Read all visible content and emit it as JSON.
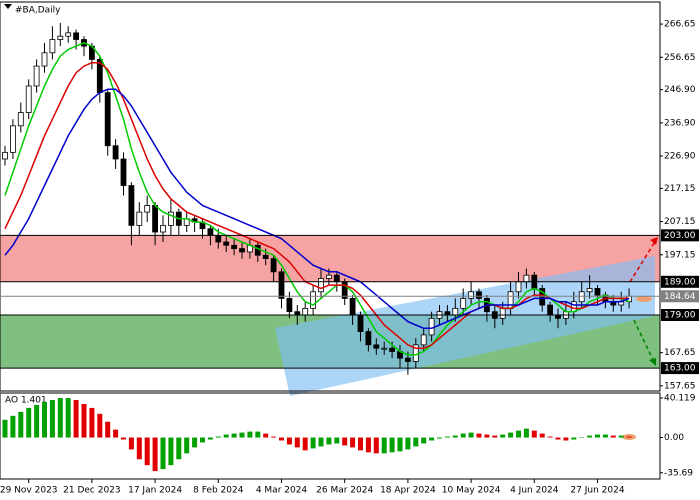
{
  "chart_data": {
    "type": "candlestick",
    "title": "#BA,Daily",
    "ylim": [
      156.1,
      273.0
    ],
    "yticks": [
      266.65,
      256.65,
      {
        "value": 246.9,
        "label": "246.90"
      },
      {
        "value": 236.9,
        "label": "236.90"
      },
      {
        "value": 226.9,
        "label": "226.90"
      },
      217.15,
      207.15,
      197.15,
      167.65,
      157.65
    ],
    "xticks": [
      {
        "value": 3,
        "label": "29 Nov 2023"
      },
      {
        "value": 11,
        "label": "21 Dec 2023"
      },
      {
        "value": 19,
        "label": "17 Jan 2024"
      },
      {
        "value": 27,
        "label": "8 Feb 2024"
      },
      {
        "value": 35,
        "label": "4 Mar 2024"
      },
      {
        "value": 43,
        "label": "26 Mar 2024"
      },
      {
        "value": 51,
        "label": "18 Apr 2024"
      },
      {
        "value": 59,
        "label": "10 May 2024"
      },
      {
        "value": 67,
        "label": "4 Jun 2024"
      },
      {
        "value": 75,
        "label": "27 Jun 2024"
      }
    ],
    "ohlc": [
      [
        226,
        230,
        224,
        228
      ],
      [
        228,
        238,
        226,
        236
      ],
      [
        236,
        243,
        234,
        240
      ],
      [
        240,
        250,
        238,
        248
      ],
      [
        248,
        256,
        246,
        254
      ],
      [
        254,
        261,
        252,
        258
      ],
      [
        258,
        266,
        256,
        262
      ],
      [
        262,
        267,
        260,
        263
      ],
      [
        263,
        266,
        261,
        264
      ],
      [
        264,
        265,
        259,
        262
      ],
      [
        262,
        263,
        257,
        260
      ],
      [
        260,
        261,
        253,
        256
      ],
      [
        256,
        257,
        243,
        246
      ],
      [
        246,
        247,
        227,
        230
      ],
      [
        230,
        232,
        223,
        226
      ],
      [
        226,
        228,
        215,
        218
      ],
      [
        218,
        219,
        200,
        206
      ],
      [
        206,
        213,
        203,
        210
      ],
      [
        210,
        215,
        207,
        212
      ],
      [
        212,
        213,
        200,
        204
      ],
      [
        204,
        209,
        201,
        206
      ],
      [
        206,
        214,
        203,
        210
      ],
      [
        210,
        211,
        203,
        206
      ],
      [
        206,
        210,
        204,
        208
      ],
      [
        208,
        209,
        204,
        207
      ],
      [
        207,
        208,
        202,
        205
      ],
      [
        205,
        206,
        200,
        203
      ],
      [
        203,
        205,
        199,
        201
      ],
      [
        201,
        203,
        198,
        200
      ],
      [
        200,
        202,
        197,
        199
      ],
      [
        199,
        201,
        196,
        198
      ],
      [
        198,
        202,
        196,
        200
      ],
      [
        200,
        201,
        195,
        197
      ],
      [
        197,
        199,
        194,
        196
      ],
      [
        196,
        197,
        189,
        192
      ],
      [
        192,
        193,
        181,
        184
      ],
      [
        184,
        186,
        178,
        180
      ],
      [
        180,
        182,
        176,
        179
      ],
      [
        179,
        183,
        177,
        181
      ],
      [
        181,
        188,
        179,
        186
      ],
      [
        186,
        193,
        184,
        190
      ],
      [
        190,
        193,
        188,
        191
      ],
      [
        191,
        192,
        186,
        189
      ],
      [
        189,
        190,
        182,
        184
      ],
      [
        184,
        185,
        176,
        179
      ],
      [
        179,
        180,
        171,
        174
      ],
      [
        174,
        175,
        168,
        170
      ],
      [
        170,
        172,
        167,
        169
      ],
      [
        169,
        171,
        167,
        169
      ],
      [
        169,
        171,
        166,
        168
      ],
      [
        168,
        170,
        163,
        166
      ],
      [
        166,
        168,
        161,
        165
      ],
      [
        165,
        172,
        163,
        170
      ],
      [
        170,
        175,
        168,
        173
      ],
      [
        173,
        180,
        171,
        178
      ],
      [
        178,
        182,
        176,
        180
      ],
      [
        180,
        182,
        177,
        179
      ],
      [
        179,
        184,
        177,
        181
      ],
      [
        181,
        187,
        179,
        184
      ],
      [
        184,
        189,
        182,
        186
      ],
      [
        186,
        187,
        181,
        184
      ],
      [
        184,
        185,
        177,
        180
      ],
      [
        180,
        182,
        175,
        178
      ],
      [
        178,
        183,
        176,
        181
      ],
      [
        181,
        189,
        179,
        186
      ],
      [
        186,
        192,
        184,
        189
      ],
      [
        189,
        193,
        187,
        191
      ],
      [
        191,
        192,
        185,
        187
      ],
      [
        187,
        188,
        180,
        182
      ],
      [
        182,
        183,
        177,
        179
      ],
      [
        179,
        181,
        175,
        178
      ],
      [
        178,
        183,
        176,
        180
      ],
      [
        180,
        186,
        178,
        183
      ],
      [
        183,
        189,
        181,
        186
      ],
      [
        186,
        191,
        184,
        187
      ],
      [
        187,
        188,
        182,
        185
      ],
      [
        185,
        186,
        181,
        183
      ],
      [
        183,
        185,
        180,
        182
      ],
      [
        182,
        186,
        180,
        183
      ],
      [
        183,
        187,
        181,
        184.64
      ]
    ],
    "series": [
      {
        "color": "#00cc00",
        "values": [
          215,
          222,
          229,
          236,
          242,
          248,
          253,
          257,
          259,
          260,
          261,
          260,
          257,
          252,
          245,
          238,
          229,
          222,
          216,
          212,
          210,
          209,
          208,
          208,
          207,
          207,
          206,
          204,
          203,
          202,
          201,
          200,
          199,
          198,
          197,
          194,
          190,
          186,
          183,
          182,
          184,
          186,
          188,
          188,
          186,
          182,
          178,
          174,
          172,
          170,
          168,
          167,
          167,
          168,
          170,
          173,
          176,
          178,
          180,
          182,
          183,
          183,
          182,
          181,
          181,
          183,
          186,
          187,
          186,
          184,
          182,
          180,
          180,
          181,
          183,
          184,
          185,
          184,
          184,
          183
        ]
      },
      {
        "color": "#dd0000",
        "values": [
          205,
          210,
          215,
          221,
          227,
          233,
          238,
          243,
          248,
          252,
          254,
          255,
          255,
          253,
          249,
          244,
          238,
          232,
          226,
          221,
          217,
          214,
          212,
          210,
          209,
          208,
          207,
          206,
          205,
          204,
          203,
          202,
          201,
          200,
          199,
          197,
          195,
          192,
          189,
          188,
          187,
          188,
          188,
          188,
          187,
          185,
          182,
          179,
          176,
          174,
          172,
          170,
          169,
          169,
          170,
          172,
          174,
          176,
          178,
          180,
          181,
          182,
          182,
          181,
          181,
          182,
          184,
          185,
          185,
          184,
          183,
          182,
          181,
          181,
          182,
          183,
          184,
          184,
          184,
          184
        ]
      },
      {
        "color": "#0000cc",
        "values": [
          197,
          200,
          204,
          208,
          213,
          218,
          223,
          228,
          233,
          237,
          241,
          244,
          246,
          247,
          247,
          245,
          242,
          238,
          234,
          230,
          226,
          222,
          219,
          216,
          214,
          212,
          211,
          210,
          209,
          208,
          207,
          206,
          205,
          204,
          203,
          202,
          200,
          198,
          196,
          194,
          193,
          192,
          192,
          191,
          190,
          189,
          187,
          185,
          183,
          181,
          179,
          177,
          176,
          175,
          175,
          176,
          177,
          178,
          179,
          180,
          181,
          182,
          182,
          182,
          182,
          182,
          183,
          184,
          184,
          184,
          183,
          183,
          182,
          182,
          182,
          182,
          183,
          183,
          183,
          184
        ]
      }
    ],
    "levels": [
      {
        "value": 203,
        "label": "203.00",
        "color": "#000000"
      },
      {
        "value": 189,
        "label": "189.00",
        "color": "#000000"
      },
      {
        "value": 184.64,
        "label": "184.64",
        "color": "#808080"
      },
      {
        "value": 179,
        "label": "179.00",
        "color": "#000000"
      },
      {
        "value": 163,
        "label": "163.00",
        "color": "#000000"
      }
    ],
    "zones": [
      {
        "from": 189,
        "to": 203,
        "color": "#f5a3a3"
      },
      {
        "from": 163,
        "to": 179,
        "color": "#7fbf7f"
      }
    ],
    "ao": {
      "label": "AO 1.401",
      "ylim": [
        -41,
        44.1
      ],
      "yticks": [
        40.119,
        {
          "value": 0,
          "label": "0.00"
        },
        -35.69
      ],
      "up_color": "#00a000",
      "down_color": "#e00000",
      "values": [
        18,
        22,
        26,
        30,
        33,
        36,
        38,
        40,
        40,
        38,
        34,
        30,
        24,
        16,
        8,
        -2,
        -12,
        -22,
        -28,
        -34,
        -32,
        -28,
        -22,
        -16,
        -10,
        -5,
        -2,
        1,
        3,
        4,
        5,
        6,
        6,
        4,
        1,
        -3,
        -7,
        -10,
        -13,
        -11,
        -9,
        -7,
        -6,
        -8,
        -10,
        -13,
        -15,
        -16,
        -16,
        -15,
        -14,
        -12,
        -9,
        -6,
        -3,
        -1,
        1,
        2,
        4,
        5,
        4,
        3,
        2,
        3,
        5,
        7,
        9,
        7,
        4,
        1,
        -2,
        -3,
        -2,
        0,
        2,
        3,
        3,
        2,
        2,
        1
      ]
    }
  }
}
